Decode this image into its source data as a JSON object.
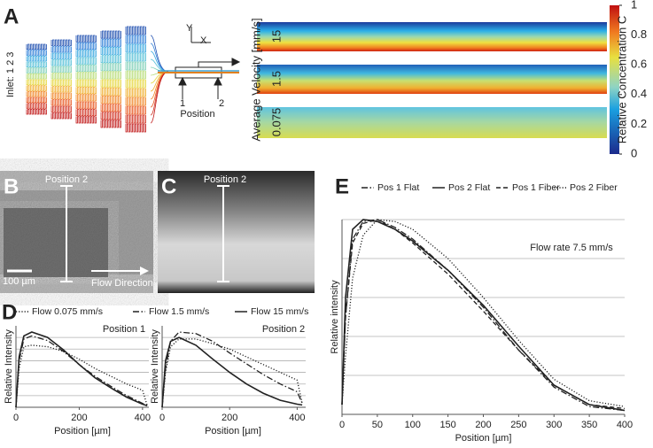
{
  "figure": {
    "panel_labels": [
      "A",
      "B",
      "C",
      "D",
      "E"
    ],
    "panel_a": {
      "inlet_label": "Inlet: 1 2 3",
      "axis_y": "Y",
      "axis_x": "X",
      "positions": [
        "1",
        "2"
      ],
      "position_label": "Position",
      "velocity_axis_label": "Average Velocity [mm/s]",
      "velocities": [
        "15",
        "1.5",
        "0.075"
      ],
      "colorbar": {
        "label": "Relative Concentration C",
        "lim": [
          0,
          1
        ],
        "ticks": [
          0,
          0.2,
          0.4,
          0.6,
          0.8,
          1
        ]
      }
    },
    "panel_b": {
      "marker": "Position 2",
      "scale_bar": "100 µm",
      "flow": "Flow Direction"
    },
    "panel_c": {
      "marker": "Position 2"
    }
  },
  "chart_data": [
    {
      "type": "line",
      "annotation": "Position 1",
      "xlabel": "Position [µm]",
      "ylabel": "Relative Intensity",
      "legend": true,
      "x": [
        0,
        10,
        25,
        50,
        100,
        150,
        200,
        250,
        300,
        350,
        400,
        415
      ],
      "xlim": [
        0,
        420
      ],
      "xticks": [
        0,
        200,
        400
      ],
      "ylim": [
        0,
        1.05
      ],
      "ygrid": [
        0.15,
        0.3,
        0.45,
        0.6,
        0.75,
        0.9
      ],
      "series": [
        {
          "name": "Flow 0.075 mm/s",
          "color": "#222222",
          "dash": "dot",
          "values": [
            0,
            0.5,
            0.78,
            0.8,
            0.78,
            0.72,
            0.62,
            0.5,
            0.4,
            0.3,
            0.22,
            0.02
          ]
        },
        {
          "name": "Flow 1.5 mm/s",
          "color": "#222222",
          "dash": "dashdot",
          "values": [
            0,
            0.6,
            0.88,
            0.92,
            0.86,
            0.72,
            0.55,
            0.4,
            0.27,
            0.15,
            0.05,
            0.02
          ]
        },
        {
          "name": "Flow 15 mm/s",
          "color": "#222222",
          "dash": "solid",
          "values": [
            0,
            0.65,
            0.92,
            0.97,
            0.9,
            0.74,
            0.55,
            0.38,
            0.25,
            0.13,
            0.04,
            0.02
          ]
        }
      ]
    },
    {
      "type": "line",
      "annotation": "Position 2",
      "xlabel": "Position [µm]",
      "ylabel": "Relative Intensity",
      "legend": false,
      "x": [
        0,
        10,
        25,
        50,
        100,
        150,
        200,
        250,
        300,
        350,
        400,
        415
      ],
      "xlim": [
        0,
        420
      ],
      "xticks": [
        0,
        200,
        400
      ],
      "ylim": [
        0,
        1.05
      ],
      "ygrid": [
        0.15,
        0.3,
        0.45,
        0.6,
        0.75,
        0.9
      ],
      "series": [
        {
          "color": "#222222",
          "dash": "dot",
          "values": [
            0,
            0.45,
            0.78,
            0.88,
            0.88,
            0.82,
            0.75,
            0.65,
            0.55,
            0.45,
            0.35,
            0.05
          ]
        },
        {
          "color": "#222222",
          "dash": "dashdot",
          "values": [
            0,
            0.5,
            0.85,
            0.97,
            0.95,
            0.85,
            0.7,
            0.56,
            0.42,
            0.3,
            0.2,
            0.05
          ]
        },
        {
          "color": "#222222",
          "dash": "solid",
          "values": [
            0,
            0.6,
            0.85,
            0.9,
            0.8,
            0.62,
            0.45,
            0.3,
            0.18,
            0.09,
            0.04,
            0.03
          ]
        }
      ]
    },
    {
      "type": "line",
      "annotation": "Flow rate 7.5 mm/s",
      "xlabel": "Position [µm]",
      "ylabel": "Relative intensity",
      "legend": true,
      "x": [
        0,
        5,
        15,
        30,
        50,
        75,
        100,
        150,
        200,
        250,
        300,
        350,
        400
      ],
      "xlim": [
        0,
        400
      ],
      "xticks": [
        0,
        50,
        100,
        150,
        200,
        250,
        300,
        350,
        400
      ],
      "ylim": [
        0,
        1
      ],
      "ygrid": [
        0.2,
        0.4,
        0.6,
        0.8,
        1
      ],
      "series": [
        {
          "name": "Pos 1 Flat",
          "color": "#222222",
          "dash": "dashdot",
          "values": [
            0.05,
            0.5,
            0.9,
            0.99,
            1,
            0.96,
            0.9,
            0.74,
            0.55,
            0.33,
            0.14,
            0.04,
            0.02
          ]
        },
        {
          "name": "Pos 2 Flat",
          "color": "#222222",
          "dash": "solid",
          "values": [
            0.05,
            0.6,
            0.95,
            1,
            0.99,
            0.95,
            0.89,
            0.74,
            0.56,
            0.35,
            0.15,
            0.05,
            0.02
          ]
        },
        {
          "name": "Pos 1 Fiber",
          "color": "#222222",
          "dash": "dash",
          "values": [
            0.05,
            0.5,
            0.88,
            0.98,
            1,
            0.95,
            0.88,
            0.72,
            0.53,
            0.33,
            0.15,
            0.05,
            0.03
          ]
        },
        {
          "name": "Pos 2 Fiber",
          "color": "#222222",
          "dash": "dot",
          "values": [
            0.05,
            0.3,
            0.7,
            0.92,
            1,
            0.99,
            0.95,
            0.8,
            0.6,
            0.38,
            0.18,
            0.07,
            0.04
          ]
        }
      ]
    }
  ]
}
